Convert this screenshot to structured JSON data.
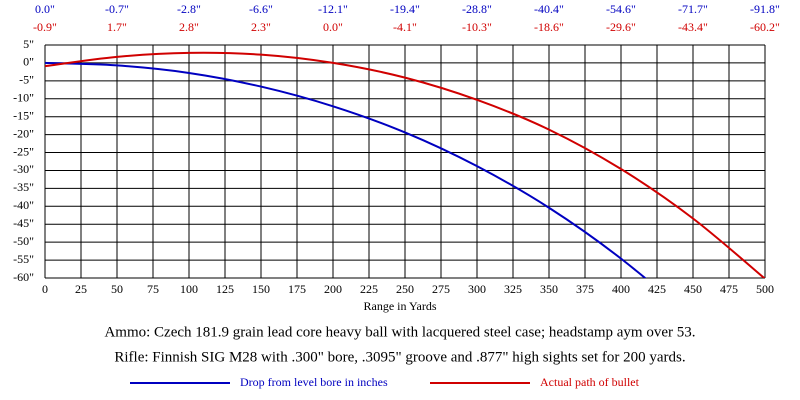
{
  "chart_data": {
    "type": "line",
    "x_label": "Range in Yards",
    "x": [
      0,
      50,
      100,
      150,
      200,
      250,
      300,
      350,
      400,
      450,
      500
    ],
    "series": [
      {
        "name": "Drop from level bore in inches",
        "color": "#0000c0",
        "values": [
          0.0,
          -0.7,
          -2.8,
          -6.6,
          -12.1,
          -19.4,
          -28.8,
          -40.4,
          -54.6,
          -71.7,
          -91.8
        ],
        "value_labels": [
          "0.0\"",
          "-0.7\"",
          "-2.8\"",
          "-6.6\"",
          "-12.1\"",
          "-19.4\"",
          "-28.8\"",
          "-40.4\"",
          "-54.6\"",
          "-71.7\"",
          "-91.8\""
        ]
      },
      {
        "name": "Actual path of bullet",
        "color": "#d00000",
        "values": [
          -0.9,
          1.7,
          2.8,
          2.3,
          0.0,
          -4.1,
          -10.3,
          -18.6,
          -29.6,
          -43.4,
          -60.2
        ],
        "value_labels": [
          "-0.9\"",
          "1.7\"",
          "2.8\"",
          "2.3\"",
          "0.0\"",
          "-4.1\"",
          "-10.3\"",
          "-18.6\"",
          "-29.6\"",
          "-43.4\"",
          "-60.2\""
        ]
      }
    ],
    "xlim": [
      0,
      500
    ],
    "xticks": [
      0,
      25,
      50,
      75,
      100,
      125,
      150,
      175,
      200,
      225,
      250,
      275,
      300,
      325,
      350,
      375,
      400,
      425,
      450,
      475,
      500
    ],
    "ylim": [
      -60,
      5
    ],
    "yticks": [
      {
        "value": 5,
        "label": "5\""
      },
      {
        "value": 0,
        "label": "0\""
      },
      {
        "value": -5,
        "label": "-5\""
      },
      {
        "value": -10,
        "label": "-10\""
      },
      {
        "value": -15,
        "label": "-15\""
      },
      {
        "value": -20,
        "label": "-20\""
      },
      {
        "value": -25,
        "label": "-25\""
      },
      {
        "value": -30,
        "label": "-30\""
      },
      {
        "value": -35,
        "label": "-35\""
      },
      {
        "value": -40,
        "label": "-40\""
      },
      {
        "value": -45,
        "label": "-45\""
      },
      {
        "value": -50,
        "label": "-50\""
      },
      {
        "value": -55,
        "label": "-55\""
      },
      {
        "value": -60,
        "label": "-60\""
      }
    ],
    "grid": true,
    "notes": [
      "Ammo:  Czech 181.9 grain lead core heavy ball with lacquered steel case; headstamp aym over 53.",
      "Rifle:  Finnish SIG M28 with .300\" bore, .3095\" groove and .877\" high sights set for 200 yards."
    ]
  }
}
